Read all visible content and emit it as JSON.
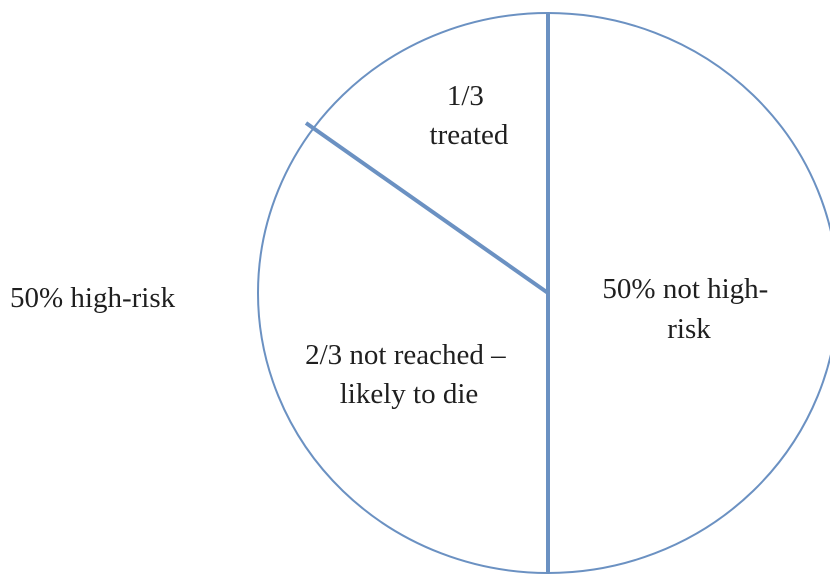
{
  "chart_data": {
    "type": "pie",
    "slices": [
      {
        "label": "50% not high-risk",
        "lines": [
          "50% not high-",
          "risk"
        ],
        "value": 0.5
      },
      {
        "label": "2/3 not reached – likely to die",
        "lines": [
          "2/3 not reached –",
          "likely to die"
        ],
        "value": 0.3333
      },
      {
        "label": "1/3 treated",
        "lines": [
          "1/3",
          "treated"
        ],
        "value": 0.1667
      }
    ],
    "outside_labels": [
      {
        "text": "50% high-risk"
      }
    ],
    "colors": {
      "outline": "#6b91c2",
      "fill": "#ffffff",
      "text": "#1f1f1f"
    }
  }
}
